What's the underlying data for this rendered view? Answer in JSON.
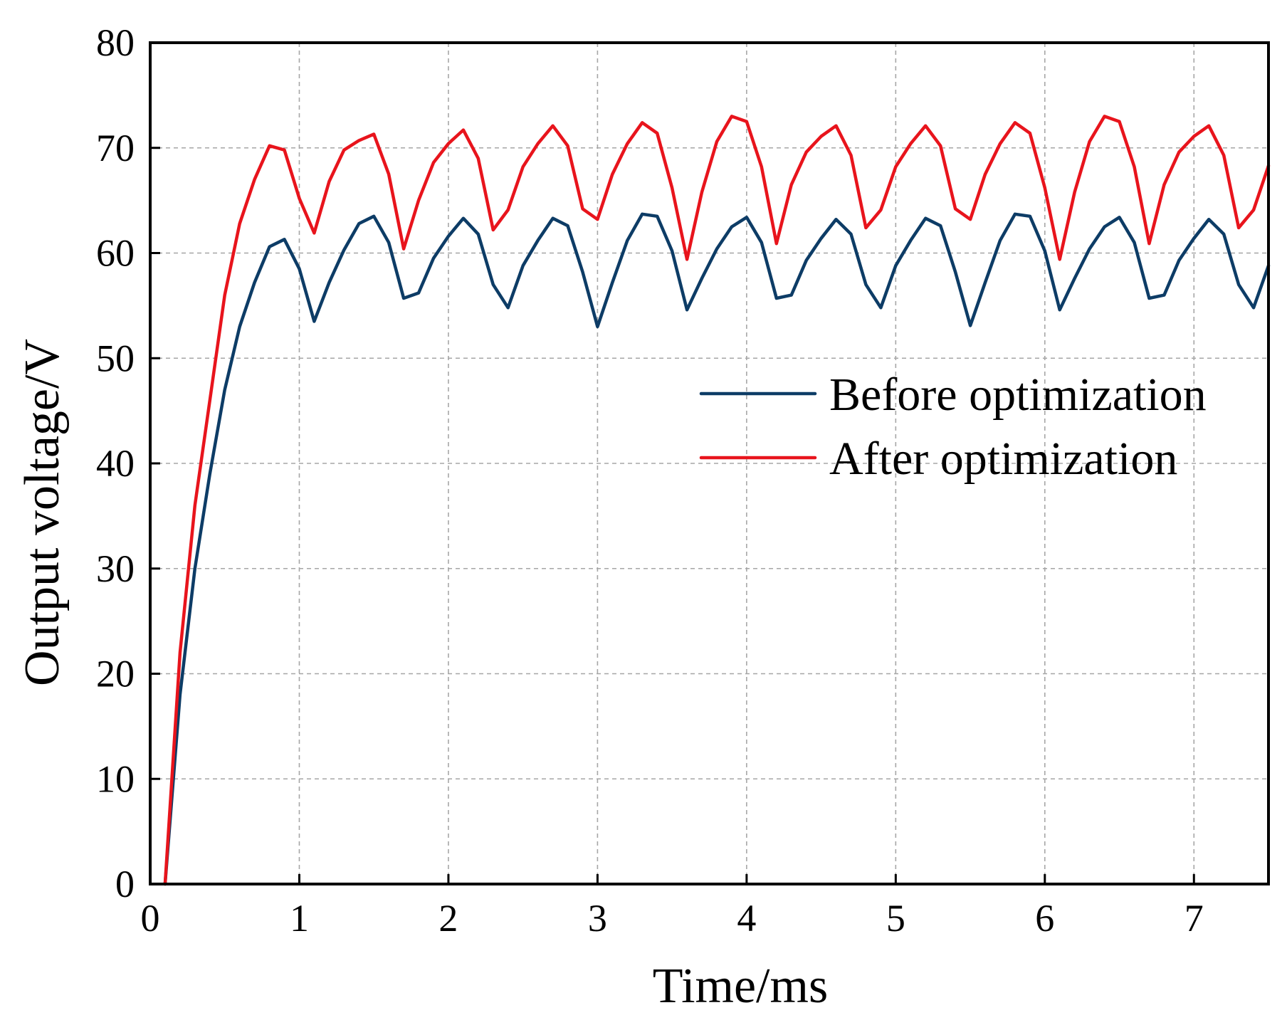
{
  "chart_data": {
    "type": "line",
    "title": "",
    "xlabel": "Time/ms",
    "ylabel": "Output voltage/V",
    "xlim": [
      0,
      7.5
    ],
    "ylim": [
      0,
      80
    ],
    "xticks": [
      0,
      1,
      2,
      3,
      4,
      5,
      6,
      7
    ],
    "yticks": [
      0,
      10,
      20,
      30,
      40,
      50,
      60,
      70,
      80
    ],
    "grid": true,
    "legend_position": "center-right",
    "series": [
      {
        "name": "Before optimization",
        "color": "#0d3c66",
        "x": [
          0.1,
          0.2,
          0.3,
          0.4,
          0.5,
          0.6,
          0.7,
          0.8,
          0.9,
          1.0,
          1.1,
          1.2,
          1.3,
          1.4,
          1.5,
          1.6,
          1.7,
          1.8,
          1.9,
          2.0,
          2.1,
          2.2,
          2.3,
          2.4,
          2.5,
          2.6,
          2.7,
          2.8,
          2.9,
          3.0,
          3.1,
          3.2,
          3.3,
          3.4,
          3.5,
          3.6,
          3.7,
          3.8,
          3.9,
          4.0,
          4.1,
          4.2,
          4.3,
          4.4,
          4.5,
          4.6,
          4.7,
          4.8,
          4.9,
          5.0,
          5.1,
          5.2,
          5.3,
          5.4,
          5.5,
          5.6,
          5.7,
          5.8,
          5.9,
          6.0,
          6.1,
          6.2,
          6.3,
          6.4,
          6.5,
          6.6,
          6.7,
          6.8,
          6.9,
          7.0,
          7.1,
          7.2,
          7.3,
          7.4,
          7.5
        ],
        "y": [
          0,
          18,
          30,
          39,
          47,
          53,
          57.2,
          60.6,
          61.3,
          58.5,
          53.5,
          57.2,
          60.3,
          62.8,
          63.5,
          61.0,
          55.7,
          56.2,
          59.5,
          61.6,
          63.3,
          61.8,
          57.0,
          54.8,
          58.8,
          61.2,
          63.3,
          62.6,
          58.2,
          53.0,
          57.2,
          61.2,
          63.7,
          63.5,
          60.2,
          54.6,
          57.6,
          60.4,
          62.5,
          63.4,
          61.0,
          55.7,
          56.0,
          59.3,
          61.4,
          63.2,
          61.8,
          57.0,
          54.8,
          58.8,
          61.2,
          63.3,
          62.6,
          58.2,
          53.1,
          57.2,
          61.2,
          63.7,
          63.5,
          60.2,
          54.6,
          57.6,
          60.4,
          62.5,
          63.4,
          61.0,
          55.7,
          56.0,
          59.3,
          61.4,
          63.2,
          61.8,
          57.0,
          54.8,
          58.8
        ]
      },
      {
        "name": "After optimization",
        "color": "#e8141c",
        "x": [
          0.1,
          0.2,
          0.3,
          0.4,
          0.5,
          0.6,
          0.7,
          0.8,
          0.9,
          1.0,
          1.1,
          1.2,
          1.3,
          1.4,
          1.5,
          1.6,
          1.7,
          1.8,
          1.9,
          2.0,
          2.1,
          2.2,
          2.3,
          2.4,
          2.5,
          2.6,
          2.7,
          2.8,
          2.9,
          3.0,
          3.1,
          3.2,
          3.3,
          3.4,
          3.5,
          3.6,
          3.7,
          3.8,
          3.9,
          4.0,
          4.1,
          4.2,
          4.3,
          4.4,
          4.5,
          4.6,
          4.7,
          4.8,
          4.9,
          5.0,
          5.1,
          5.2,
          5.3,
          5.4,
          5.5,
          5.6,
          5.7,
          5.8,
          5.9,
          6.0,
          6.1,
          6.2,
          6.3,
          6.4,
          6.5,
          6.6,
          6.7,
          6.8,
          6.9,
          7.0,
          7.1,
          7.2,
          7.3,
          7.4,
          7.5
        ],
        "y": [
          0,
          22,
          36,
          46,
          56,
          62.8,
          67.0,
          70.2,
          69.8,
          65.2,
          61.9,
          66.8,
          69.8,
          70.7,
          71.3,
          67.5,
          60.4,
          65.0,
          68.6,
          70.4,
          71.7,
          69.0,
          62.2,
          64.1,
          68.2,
          70.4,
          72.1,
          70.2,
          64.2,
          63.2,
          67.5,
          70.4,
          72.4,
          71.4,
          66.2,
          59.4,
          65.8,
          70.6,
          73.0,
          72.5,
          68.2,
          60.9,
          66.5,
          69.6,
          71.1,
          72.1,
          69.3,
          62.4,
          64.1,
          68.2,
          70.4,
          72.1,
          70.2,
          64.2,
          63.2,
          67.5,
          70.4,
          72.4,
          71.4,
          66.2,
          59.4,
          65.8,
          70.6,
          73.0,
          72.5,
          68.2,
          60.9,
          66.5,
          69.6,
          71.1,
          72.1,
          69.3,
          62.4,
          64.1,
          68.3
        ]
      }
    ]
  }
}
